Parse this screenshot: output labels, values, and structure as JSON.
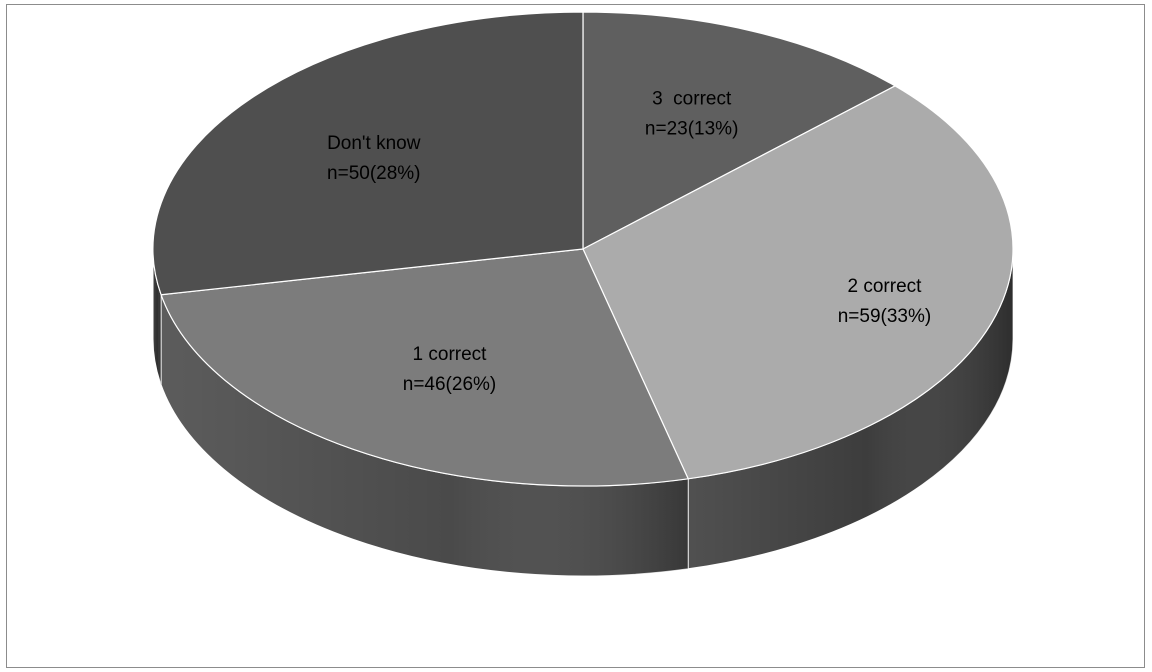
{
  "chart_data": {
    "type": "pie",
    "style": "3d",
    "title": "",
    "slices": [
      {
        "label": "3  correct",
        "n_label": "n=23(13%)",
        "n": 23,
        "percent": 13,
        "color": "#5f5f5f",
        "side_color": "#3f3f3f"
      },
      {
        "label": "2 correct",
        "n_label": "n=59(33%)",
        "n": 59,
        "percent": 33,
        "color": "#ababab",
        "side_color": "#3d3d3d"
      },
      {
        "label": "1 correct",
        "n_label": "n=46(26%)",
        "n": 46,
        "percent": 26,
        "color": "#7c7c7c",
        "side_color": "#4a4a4a"
      },
      {
        "label": "Don't know",
        "n_label": "n=50(28%)",
        "n": 50,
        "percent": 28,
        "color": "#4f4f4f",
        "side_color": "#2e2e2e"
      }
    ],
    "start_angle": "12 o'clock",
    "direction": "clockwise",
    "legend": "none"
  }
}
